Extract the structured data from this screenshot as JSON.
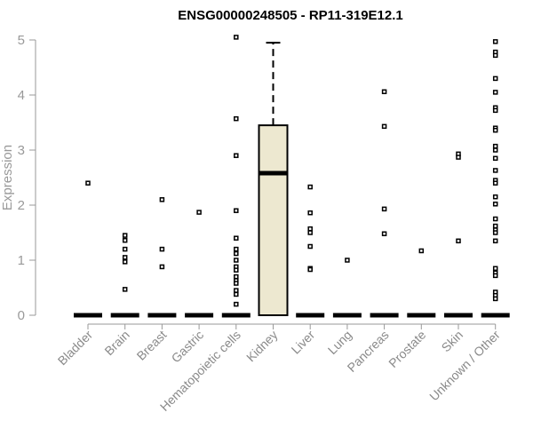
{
  "chart_data": {
    "type": "boxplot",
    "title": "ENSG00000248505 - RP11-319E12.1",
    "xlabel": "",
    "ylabel": "Expression",
    "ylim": [
      0,
      5
    ],
    "yticks": [
      0,
      1,
      2,
      3,
      4,
      5
    ],
    "grid": false,
    "box_fill": "#ede8d0",
    "categories": [
      "Bladder",
      "Brain",
      "Breast",
      "Gastric",
      "Hematopoietic cells",
      "Kidney",
      "Liver",
      "Lung",
      "Pancreas",
      "Prostate",
      "Skin",
      "Unknown / Other"
    ],
    "boxes": [
      {
        "min": 0,
        "q1": 0,
        "median": 0,
        "q3": 0,
        "max": 0,
        "outliers": [
          2.4
        ]
      },
      {
        "min": 0,
        "q1": 0,
        "median": 0,
        "q3": 0,
        "max": 0,
        "outliers": [
          1.45,
          1.36,
          1.2,
          1.05,
          0.97,
          0.47
        ]
      },
      {
        "min": 0,
        "q1": 0,
        "median": 0,
        "q3": 0,
        "max": 0,
        "outliers": [
          2.1,
          1.2,
          0.88
        ]
      },
      {
        "min": 0,
        "q1": 0,
        "median": 0,
        "q3": 0,
        "max": 0,
        "outliers": [
          1.87
        ]
      },
      {
        "min": 0,
        "q1": 0,
        "median": 0,
        "q3": 0,
        "max": 0,
        "outliers": [
          5.05,
          3.57,
          2.9,
          1.9,
          1.4,
          1.2,
          1.12,
          1.0,
          0.88,
          0.82,
          0.7,
          0.63,
          0.58,
          0.45,
          0.38,
          0.2
        ]
      },
      {
        "min": 0,
        "q1": 0,
        "median": 2.58,
        "q3": 3.45,
        "max": 4.95,
        "outliers": []
      },
      {
        "min": 0,
        "q1": 0,
        "median": 0,
        "q3": 0,
        "max": 0,
        "outliers": [
          2.33,
          1.86,
          1.57,
          1.5,
          1.25,
          0.85,
          0.83
        ]
      },
      {
        "min": 0,
        "q1": 0,
        "median": 0,
        "q3": 0,
        "max": 0,
        "outliers": [
          1.0
        ]
      },
      {
        "min": 0,
        "q1": 0,
        "median": 0,
        "q3": 0,
        "max": 0,
        "outliers": [
          4.06,
          3.43,
          1.93,
          1.48
        ]
      },
      {
        "min": 0,
        "q1": 0,
        "median": 0,
        "q3": 0,
        "max": 0,
        "outliers": [
          1.17
        ]
      },
      {
        "min": 0,
        "q1": 0,
        "median": 0,
        "q3": 0,
        "max": 0,
        "outliers": [
          2.93,
          2.87,
          1.35
        ]
      },
      {
        "min": 0,
        "q1": 0,
        "median": 0,
        "q3": 0,
        "max": 0,
        "outliers": [
          4.97,
          4.78,
          4.72,
          4.3,
          4.05,
          3.77,
          3.72,
          3.4,
          3.36,
          3.07,
          3.0,
          2.85,
          2.63,
          2.45,
          2.4,
          2.15,
          2.02,
          1.75,
          1.62,
          1.55,
          1.5,
          1.35,
          0.85,
          0.77,
          0.72,
          0.42,
          0.36,
          0.3
        ]
      }
    ]
  }
}
